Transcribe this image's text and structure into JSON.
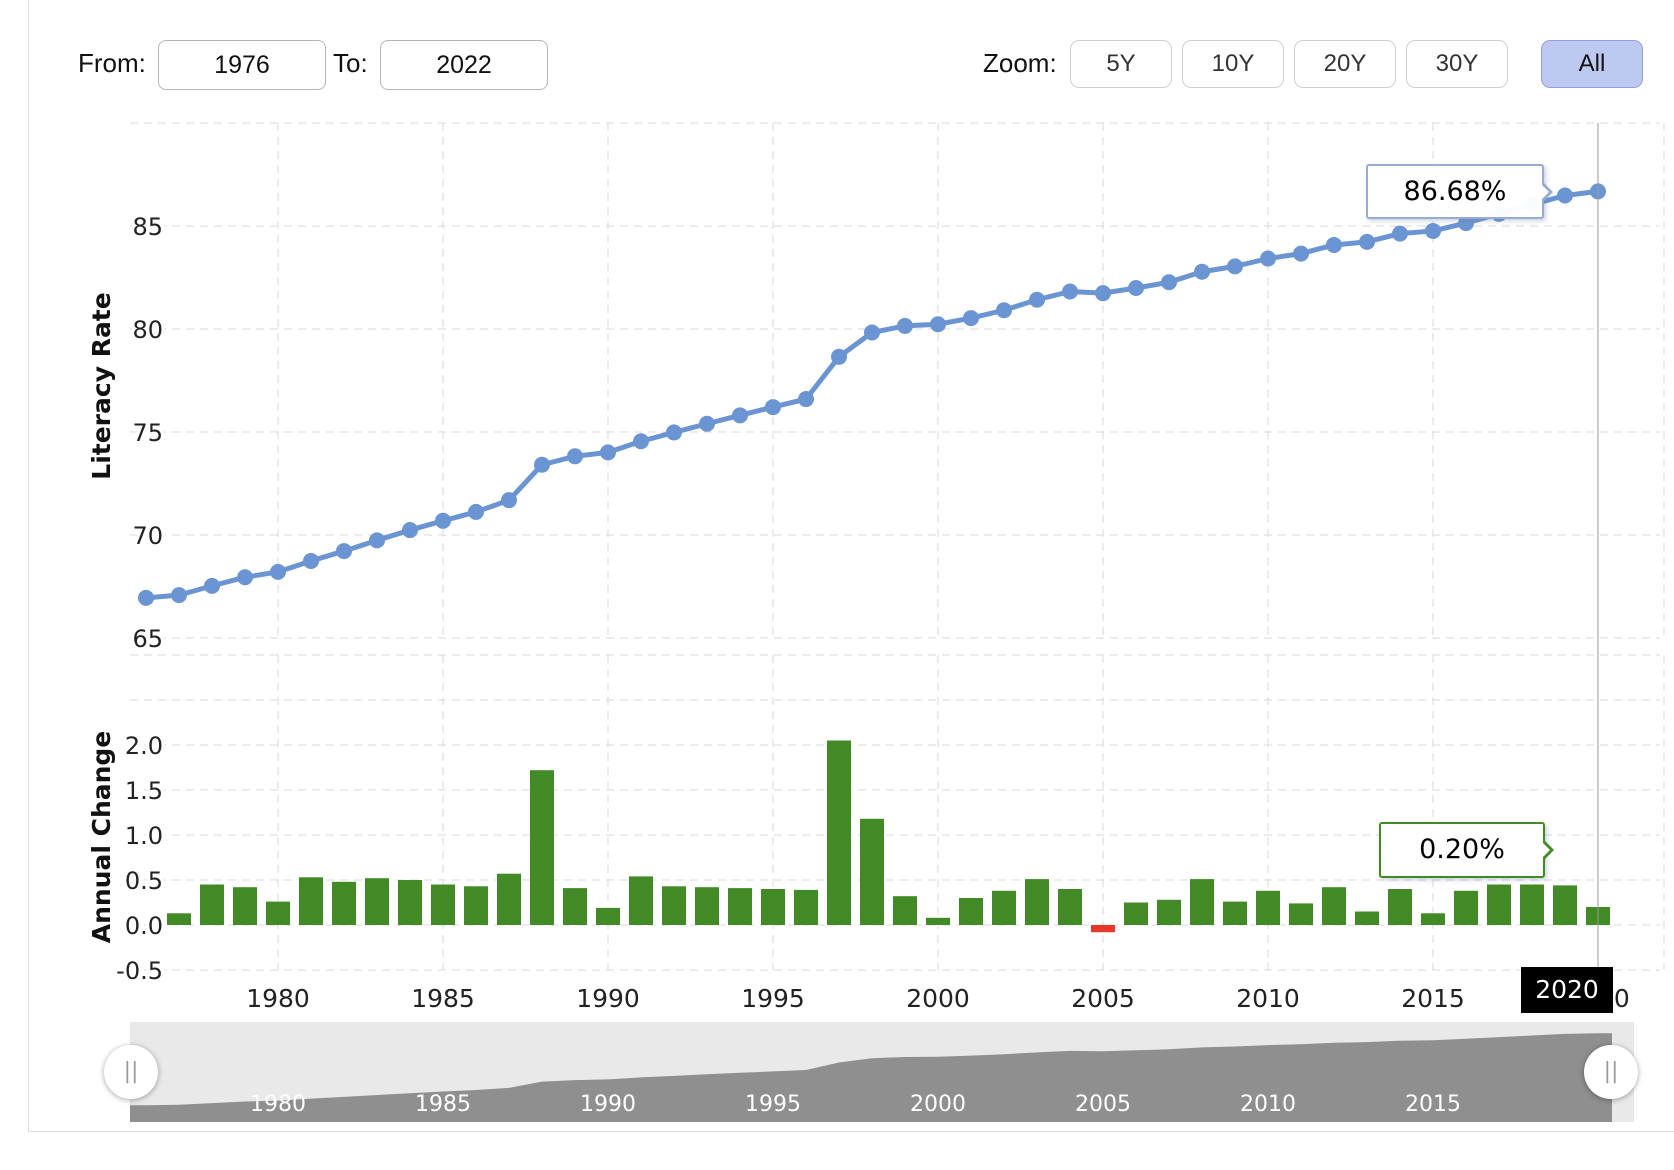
{
  "controls": {
    "from_label": "From:",
    "from_value": "1976",
    "to_label": "To:",
    "to_value": "2022",
    "zoom_label": "Zoom:",
    "zoom_buttons": [
      {
        "label": "5Y",
        "active": false
      },
      {
        "label": "10Y",
        "active": false
      },
      {
        "label": "20Y",
        "active": false
      },
      {
        "label": "30Y",
        "active": false
      },
      {
        "label": "All",
        "active": true
      }
    ],
    "active_button_bg": "#bdc9f0"
  },
  "chart_data": [
    {
      "type": "line",
      "ylabel": "Literacy Rate",
      "x": [
        1976,
        1977,
        1978,
        1979,
        1980,
        1981,
        1982,
        1983,
        1984,
        1985,
        1986,
        1987,
        1988,
        1989,
        1990,
        1991,
        1992,
        1993,
        1994,
        1995,
        1996,
        1997,
        1998,
        1999,
        2000,
        2001,
        2002,
        2003,
        2004,
        2005,
        2006,
        2007,
        2008,
        2009,
        2010,
        2011,
        2012,
        2013,
        2014,
        2015,
        2016,
        2017,
        2018,
        2019,
        2020
      ],
      "values": [
        66.95,
        67.08,
        67.53,
        67.95,
        68.21,
        68.74,
        69.22,
        69.74,
        70.24,
        70.69,
        71.12,
        71.69,
        73.41,
        73.82,
        74.01,
        74.55,
        74.98,
        75.4,
        75.81,
        76.21,
        76.6,
        78.65,
        79.83,
        80.15,
        80.23,
        80.53,
        80.91,
        81.42,
        81.82,
        81.74,
        81.99,
        82.27,
        82.78,
        83.04,
        83.42,
        83.66,
        84.08,
        84.23,
        84.63,
        84.76,
        85.14,
        85.59,
        86.04,
        86.48,
        86.68
      ],
      "ylim": [
        65,
        90
      ],
      "ytick_values": [
        65,
        70,
        75,
        80,
        85
      ],
      "ytick_labels": [
        "65",
        "70",
        "75",
        "80",
        "85"
      ],
      "ygrid_values": [
        65,
        70,
        75,
        80,
        85,
        90
      ],
      "xticks": [
        1980,
        1985,
        1990,
        1995,
        2000,
        2005,
        2010,
        2015,
        2020
      ],
      "color": "#6b94d2",
      "grid_on": true,
      "tooltip": "86.68%"
    },
    {
      "type": "bar",
      "ylabel": "Annual Change",
      "x": [
        1977,
        1978,
        1979,
        1980,
        1981,
        1982,
        1983,
        1984,
        1985,
        1986,
        1987,
        1988,
        1989,
        1990,
        1991,
        1992,
        1993,
        1994,
        1995,
        1996,
        1997,
        1998,
        1999,
        2000,
        2001,
        2002,
        2003,
        2004,
        2005,
        2006,
        2007,
        2008,
        2009,
        2010,
        2011,
        2012,
        2013,
        2014,
        2015,
        2016,
        2017,
        2018,
        2019,
        2020
      ],
      "values": [
        0.13,
        0.45,
        0.42,
        0.26,
        0.53,
        0.48,
        0.52,
        0.5,
        0.45,
        0.43,
        0.57,
        1.72,
        0.41,
        0.19,
        0.54,
        0.43,
        0.42,
        0.41,
        0.4,
        0.39,
        2.05,
        1.18,
        0.32,
        0.08,
        0.3,
        0.38,
        0.51,
        0.4,
        -0.08,
        0.25,
        0.28,
        0.51,
        0.26,
        0.38,
        0.24,
        0.42,
        0.15,
        0.4,
        0.13,
        0.38,
        0.45,
        0.45,
        0.44,
        0.2
      ],
      "ylim": [
        -0.5,
        3.0
      ],
      "ytick_values": [
        -0.5,
        0.0,
        0.5,
        1.0,
        1.5,
        2.0
      ],
      "ytick_labels": [
        "-0.5",
        "0.0",
        "0.5",
        "1.0",
        "1.5",
        "2.0"
      ],
      "ygrid_values": [
        -0.5,
        0.0,
        0.5,
        1.0,
        1.5,
        2.0,
        2.5,
        3.0
      ],
      "xticks": [
        1980,
        1985,
        1990,
        1995,
        2000,
        2005,
        2010,
        2015,
        2020
      ],
      "color_positive": "#418a26",
      "color_negative": "#e6382a",
      "grid_on": true,
      "tooltip": "0.20%"
    }
  ],
  "crosshair": {
    "year_label": "2020",
    "color": "#999999"
  },
  "navigator": {
    "labels": [
      "1980",
      "1985",
      "1990",
      "1995",
      "2000",
      "2005",
      "2010",
      "2015"
    ],
    "band_color": "#e9e9e9",
    "area_color": "#8f8f8f",
    "handle_glyph": "||"
  }
}
